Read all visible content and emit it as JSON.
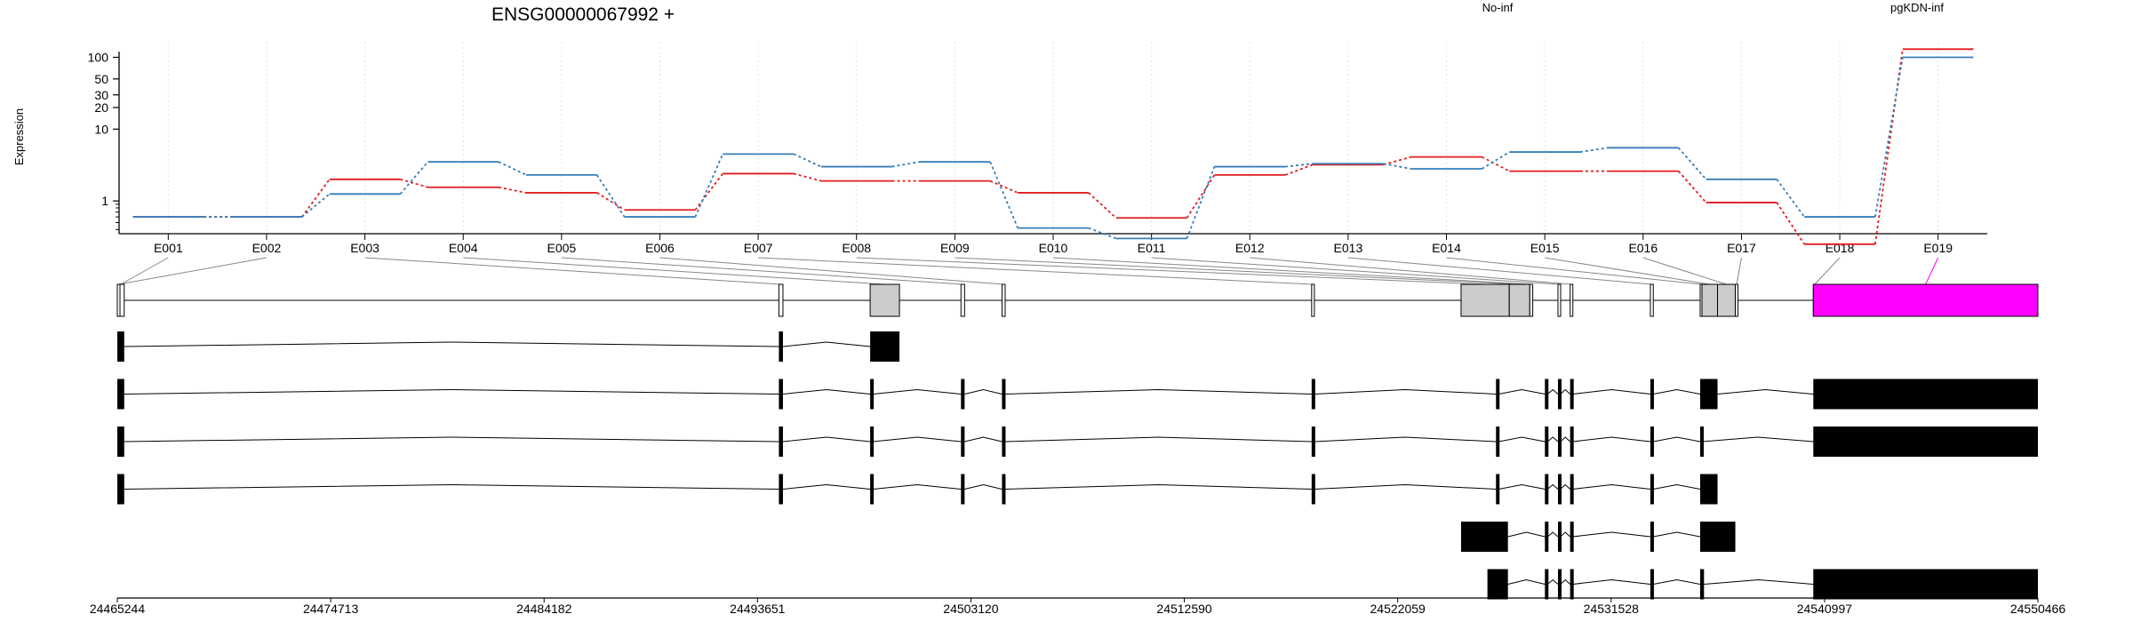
{
  "chart_data": {
    "type": "line",
    "title": "ENSG00000067992 +",
    "ylabel": "Expression",
    "xlabel": "",
    "y_scale": "log",
    "ylim": [
      0.35,
      160
    ],
    "y_ticks": [
      1,
      10,
      20,
      30,
      50,
      100
    ],
    "grid": "vertical dotted lines at each exon",
    "categories": [
      "E001",
      "E002",
      "E003",
      "E004",
      "E005",
      "E006",
      "E007",
      "E008",
      "E009",
      "E010",
      "E011",
      "E012",
      "E013",
      "E014",
      "E015",
      "E016",
      "E017",
      "E018",
      "E019"
    ],
    "legend_placement": "top",
    "series": [
      {
        "name": "No-inf",
        "color": "#e41a1c",
        "values": [
          0.6,
          0.6,
          2.0,
          1.55,
          1.3,
          0.75,
          2.4,
          1.9,
          1.9,
          1.3,
          0.58,
          2.3,
          3.2,
          4.1,
          2.6,
          2.6,
          0.95,
          0.25,
          130
        ]
      },
      {
        "name": "pgKDN-inf",
        "color": "#377eb8",
        "values": [
          0.6,
          0.6,
          1.25,
          3.5,
          2.3,
          0.6,
          4.5,
          3.0,
          3.5,
          0.42,
          0.3,
          3.0,
          3.3,
          2.8,
          4.8,
          5.5,
          2.0,
          0.6,
          100
        ]
      }
    ],
    "genomic_axis": {
      "min": 24465244,
      "max": 24550466,
      "tick_labels": [
        "24465244",
        "24474713",
        "24484182",
        "24493651",
        "24503120",
        "24512590",
        "24522059",
        "24531528",
        "24540997",
        "24550466"
      ]
    },
    "exons": [
      {
        "id": "E001",
        "start": 24465244,
        "end": 24465550
      },
      {
        "id": "E002",
        "start": 24465244,
        "end": 24465244
      },
      {
        "id": "E003",
        "start": 24494600,
        "end": 24494780
      },
      {
        "id": "E004",
        "start": 24498650,
        "end": 24499950
      },
      {
        "id": "E005",
        "start": 24502680,
        "end": 24502840
      },
      {
        "id": "E006",
        "start": 24504500,
        "end": 24504640
      },
      {
        "id": "E007",
        "start": 24518240,
        "end": 24518360
      },
      {
        "id": "E008",
        "start": 24524870,
        "end": 24527010
      },
      {
        "id": "E009",
        "start": 24527010,
        "end": 24527920
      },
      {
        "id": "E010",
        "start": 24527920,
        "end": 24528050
      },
      {
        "id": "E011",
        "start": 24529170,
        "end": 24529280
      },
      {
        "id": "E012",
        "start": 24529710,
        "end": 24529830
      },
      {
        "id": "E013",
        "start": 24533270,
        "end": 24533400
      },
      {
        "id": "E014",
        "start": 24535480,
        "end": 24535560
      },
      {
        "id": "E015",
        "start": 24535560,
        "end": 24536250
      },
      {
        "id": "E016",
        "start": 24536250,
        "end": 24537040
      },
      {
        "id": "E017",
        "start": 24537040,
        "end": 24537050
      },
      {
        "id": "E018",
        "start": 24540500,
        "end": 24540500
      },
      {
        "id": "E019",
        "start": 24540500,
        "end": 24550466
      }
    ],
    "highlighted_exon": "E019",
    "highlight_color": "#ff00ff",
    "transcripts": [
      [
        [
          24465244,
          24465550
        ],
        [
          24494600,
          24494780
        ],
        [
          24498650,
          24499950
        ]
      ],
      [
        [
          24465244,
          24465550
        ],
        [
          24494600,
          24494780
        ],
        [
          24498650,
          24498780
        ],
        [
          24502680,
          24502840
        ],
        [
          24504500,
          24504640
        ],
        [
          24518240,
          24518360
        ],
        [
          24526420,
          24526540
        ],
        [
          24528590,
          24528710
        ],
        [
          24529170,
          24529280
        ],
        [
          24529710,
          24529830
        ],
        [
          24533270,
          24533400
        ],
        [
          24535480,
          24536250
        ],
        [
          24540500,
          24550466
        ]
      ],
      [
        [
          24465244,
          24465550
        ],
        [
          24494600,
          24494780
        ],
        [
          24498650,
          24498780
        ],
        [
          24502680,
          24502840
        ],
        [
          24504500,
          24504640
        ],
        [
          24518240,
          24518360
        ],
        [
          24526420,
          24526540
        ],
        [
          24528590,
          24528710
        ],
        [
          24529170,
          24529280
        ],
        [
          24529710,
          24529830
        ],
        [
          24533270,
          24533400
        ],
        [
          24535480,
          24535560
        ],
        [
          24540500,
          24550466
        ]
      ],
      [
        [
          24465244,
          24465550
        ],
        [
          24494600,
          24494780
        ],
        [
          24498650,
          24498780
        ],
        [
          24502680,
          24502840
        ],
        [
          24504500,
          24504640
        ],
        [
          24518240,
          24518360
        ],
        [
          24526420,
          24526540
        ],
        [
          24528590,
          24528710
        ],
        [
          24529170,
          24529280
        ],
        [
          24529710,
          24529830
        ],
        [
          24533270,
          24533400
        ],
        [
          24535480,
          24536250
        ]
      ],
      [
        [
          24524870,
          24526950
        ],
        [
          24528590,
          24528710
        ],
        [
          24529170,
          24529280
        ],
        [
          24529710,
          24529830
        ],
        [
          24533270,
          24533400
        ],
        [
          24535480,
          24537040
        ]
      ],
      [
        [
          24526040,
          24526950
        ],
        [
          24528590,
          24528710
        ],
        [
          24529170,
          24529280
        ],
        [
          24529710,
          24529830
        ],
        [
          24533270,
          24533400
        ],
        [
          24535480,
          24535650
        ],
        [
          24540500,
          24550466
        ]
      ]
    ]
  }
}
